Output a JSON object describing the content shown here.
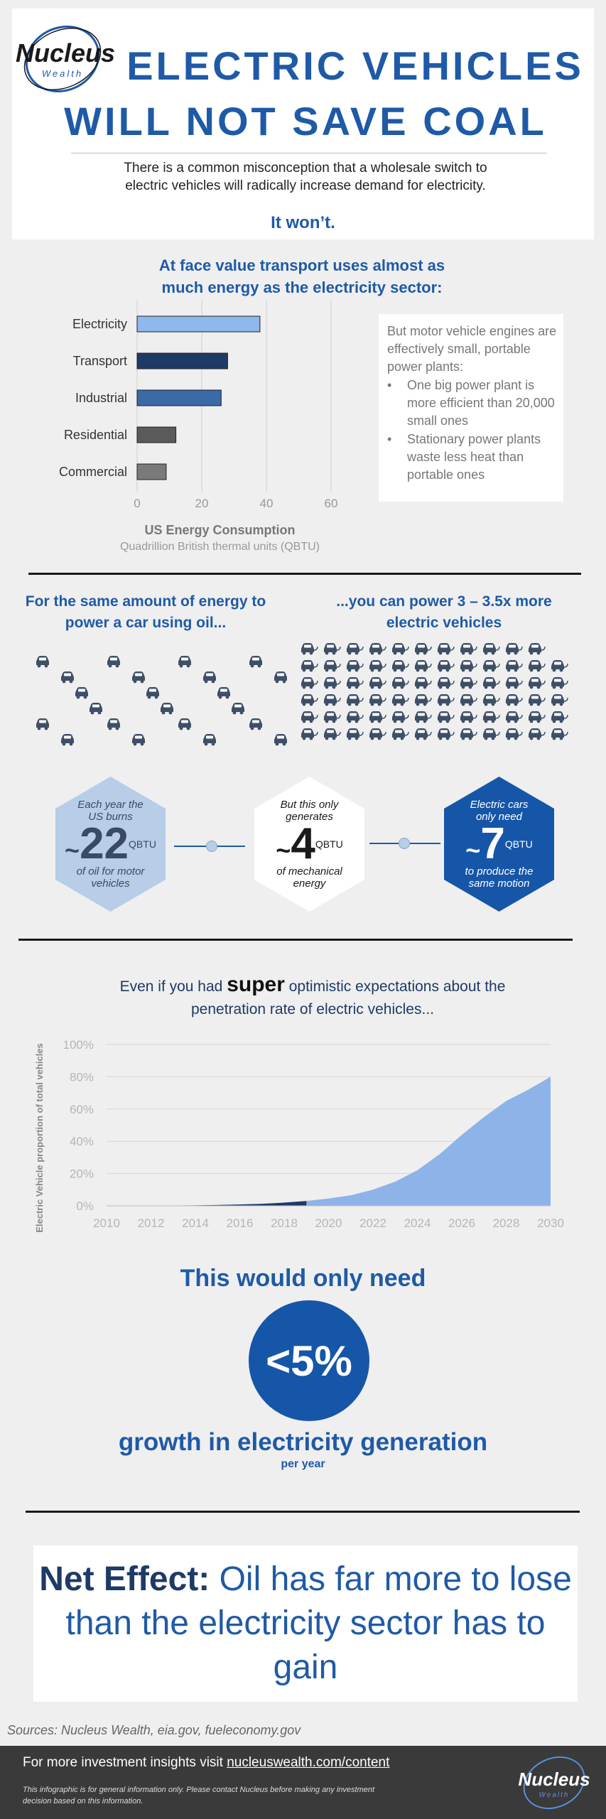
{
  "header": {
    "logo_text": "Nucleus",
    "logo_sub": "Wealth",
    "title_line1": "ELECTRIC VEHICLES",
    "title_line2": "WILL NOT SAVE COAL",
    "intro": "There is a common misconception that a wholesale switch to electric vehicles will radically increase demand for electricity.",
    "answer": "It won’t."
  },
  "section1": {
    "heading": "At face value transport uses almost as much energy as the electricity sector:",
    "note_intro": "But motor vehicle engines are effectively small, portable power plants:",
    "bullets": [
      "One big power plant is more efficient than 20,000 small ones",
      "Stationary power plants waste less heat than portable ones"
    ]
  },
  "section2": {
    "left_heading": "For the same amount of energy to power a car using oil...",
    "right_heading": "...you can power 3 – 3.5x more electric vehicles",
    "hex1": {
      "pre": "Each year the US burns",
      "tilde": "~",
      "num": "22",
      "unit": "QBTU",
      "post": "of oil for motor vehicles"
    },
    "hex2": {
      "pre": "But this only generates",
      "tilde": "~",
      "num": "4",
      "unit": "QBTU",
      "post": "of mechanical energy"
    },
    "hex3": {
      "pre": "Electric cars only need",
      "tilde": "~",
      "num": "7",
      "unit": "QBTU",
      "post": "to produce the same motion"
    }
  },
  "section3": {
    "heading_pre": "Even if you had ",
    "heading_bold": "super",
    "heading_post": " optimistic expectations about the penetration rate of electric vehicles..."
  },
  "section4": {
    "line1": "This would only need",
    "circle_value": "<5%",
    "line2": "growth in electricity generation",
    "line3": "per year"
  },
  "net_effect": {
    "bold": "Net Effect:",
    "rest": " Oil has far more to lose than the electricity sector has to gain"
  },
  "sources": "Sources: Nucleus Wealth, eia.gov, fueleconomy.gov",
  "footer": {
    "insights_pre": "For more investment insights visit ",
    "insights_link": "nucleuswealth.com/content",
    "disclaimer": "This infographic is for general information only. Please contact Nucleus before making any investment decision based on this information."
  },
  "colors": {
    "brand_blue": "#1f5aa6",
    "dark_navy": "#1e3a66",
    "light_blue": "#8db3e8",
    "hex_light": "#b7cde8",
    "car_gray": "#3e4f66"
  },
  "chart_data": [
    {
      "type": "bar",
      "orientation": "horizontal",
      "title": "US Energy Consumption",
      "subtitle": "Quadrillion British thermal units (QBTU)",
      "categories": [
        "Electricity",
        "Transport",
        "Industrial",
        "Residential",
        "Commercial"
      ],
      "values": [
        38,
        28,
        26,
        12,
        9
      ],
      "bar_colors": [
        "#8fb8ec",
        "#1e3a66",
        "#3b6aa8",
        "#5a5a5a",
        "#7a7a7a"
      ],
      "xlim": [
        0,
        60
      ],
      "xticks": [
        0,
        20,
        40,
        60
      ],
      "grid": true
    },
    {
      "type": "area",
      "ylabel": "Electric Vehicle proportion of total vehicles",
      "x": [
        2010,
        2011,
        2012,
        2013,
        2014,
        2015,
        2016,
        2017,
        2018,
        2019,
        2020,
        2021,
        2022,
        2023,
        2024,
        2025,
        2026,
        2027,
        2028,
        2029,
        2030
      ],
      "values": [
        0.0,
        0.05,
        0.1,
        0.15,
        0.3,
        0.5,
        0.8,
        1.2,
        2.0,
        3.0,
        4.5,
        6.5,
        10.0,
        15.0,
        22.0,
        32.0,
        44.0,
        55.0,
        65.0,
        72.0,
        80.0
      ],
      "split_year": 2019,
      "historical_color": "#1e3a66",
      "forecast_color": "#8db3e8",
      "ylim": [
        0,
        100
      ],
      "yticks": [
        "0%",
        "20%",
        "40%",
        "60%",
        "80%",
        "100%"
      ],
      "xticks": [
        "2010",
        "2012",
        "2014",
        "2016",
        "2018",
        "2020",
        "2022",
        "2024",
        "2026",
        "2028",
        "2030"
      ],
      "grid": true
    }
  ]
}
